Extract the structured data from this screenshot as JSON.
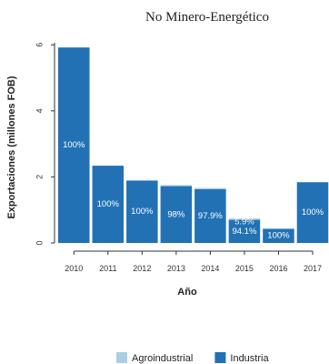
{
  "chart_data": {
    "type": "bar",
    "stacked": true,
    "title": "No Minero-Energético",
    "xlabel": "Año",
    "ylabel": "Exportaciones (millones FOB)",
    "ylim": [
      0,
      6.2
    ],
    "yticks": [
      0,
      2,
      4,
      6
    ],
    "grid": false,
    "legend_position": "bottom",
    "categories": [
      "2010",
      "2011",
      "2012",
      "2013",
      "2014",
      "2015",
      "2016",
      "2017"
    ],
    "series": [
      {
        "name": "Industria",
        "color": "#2271b5",
        "values": [
          5.92,
          2.34,
          1.89,
          1.72,
          1.63,
          0.7,
          0.43,
          1.84
        ],
        "labels": [
          "100%",
          "100%",
          "100%",
          "98%",
          "97.9%",
          "94.1%",
          "100%",
          "100%"
        ]
      },
      {
        "name": "Agroindustrial",
        "color": "#a9cfe3",
        "values": [
          0,
          0,
          0,
          0.035,
          0.035,
          0.044,
          0,
          0
        ],
        "labels": [
          "",
          "",
          "",
          "",
          "",
          "5.9%",
          "",
          ""
        ]
      }
    ],
    "legend": [
      "Agroindustrial",
      "Industria"
    ]
  }
}
